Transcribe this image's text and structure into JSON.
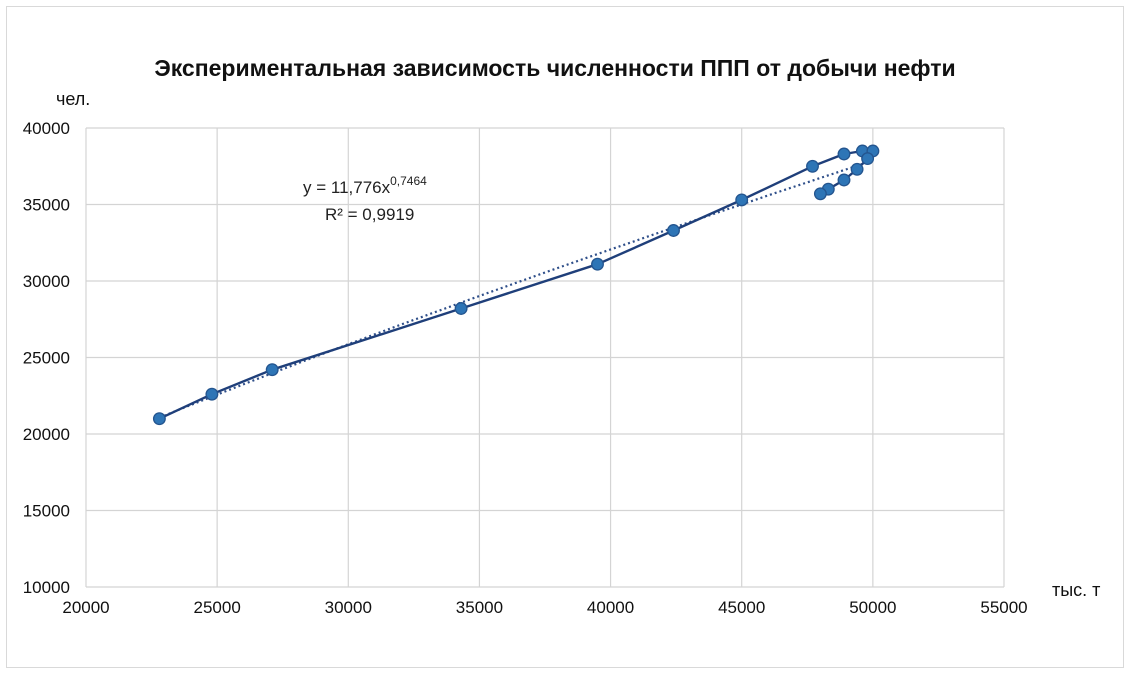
{
  "chart_data": {
    "type": "scatter",
    "title": "Экспериментальная зависимость численности ППП от добычи нефти",
    "ylabel": "чел.",
    "xlabel": "тыс. т",
    "xlim": [
      20000,
      55000
    ],
    "ylim": [
      10000,
      40000
    ],
    "x_ticks": [
      "20000",
      "25000",
      "30000",
      "35000",
      "40000",
      "45000",
      "50000",
      "55000"
    ],
    "y_ticks": [
      "10000",
      "15000",
      "20000",
      "25000",
      "30000",
      "35000",
      "40000"
    ],
    "grid": true,
    "series": [
      {
        "points": [
          [
            22800,
            21000
          ],
          [
            24800,
            22600
          ],
          [
            27100,
            24200
          ],
          [
            34300,
            28200
          ],
          [
            39500,
            31100
          ],
          [
            42400,
            33300
          ],
          [
            45000,
            35300
          ],
          [
            47700,
            37500
          ],
          [
            48900,
            38300
          ],
          [
            49600,
            38500
          ],
          [
            50000,
            38500
          ],
          [
            49800,
            38000
          ],
          [
            49400,
            37300
          ],
          [
            48900,
            36600
          ],
          [
            48300,
            36000
          ],
          [
            48000,
            35700
          ]
        ],
        "color": "#2e75b6",
        "line_color": "#1f3f7a"
      }
    ],
    "trendline": {
      "kind": "power",
      "a": 11.776,
      "b": 0.7464,
      "x_from": 22800,
      "x_to": 50000,
      "style": "dotted",
      "color": "#2f4f8a"
    },
    "annotations": {
      "equation_prefix": "y = 11,776x",
      "equation_exponent": "0,7464",
      "r2": "R² = 0,9919"
    }
  }
}
